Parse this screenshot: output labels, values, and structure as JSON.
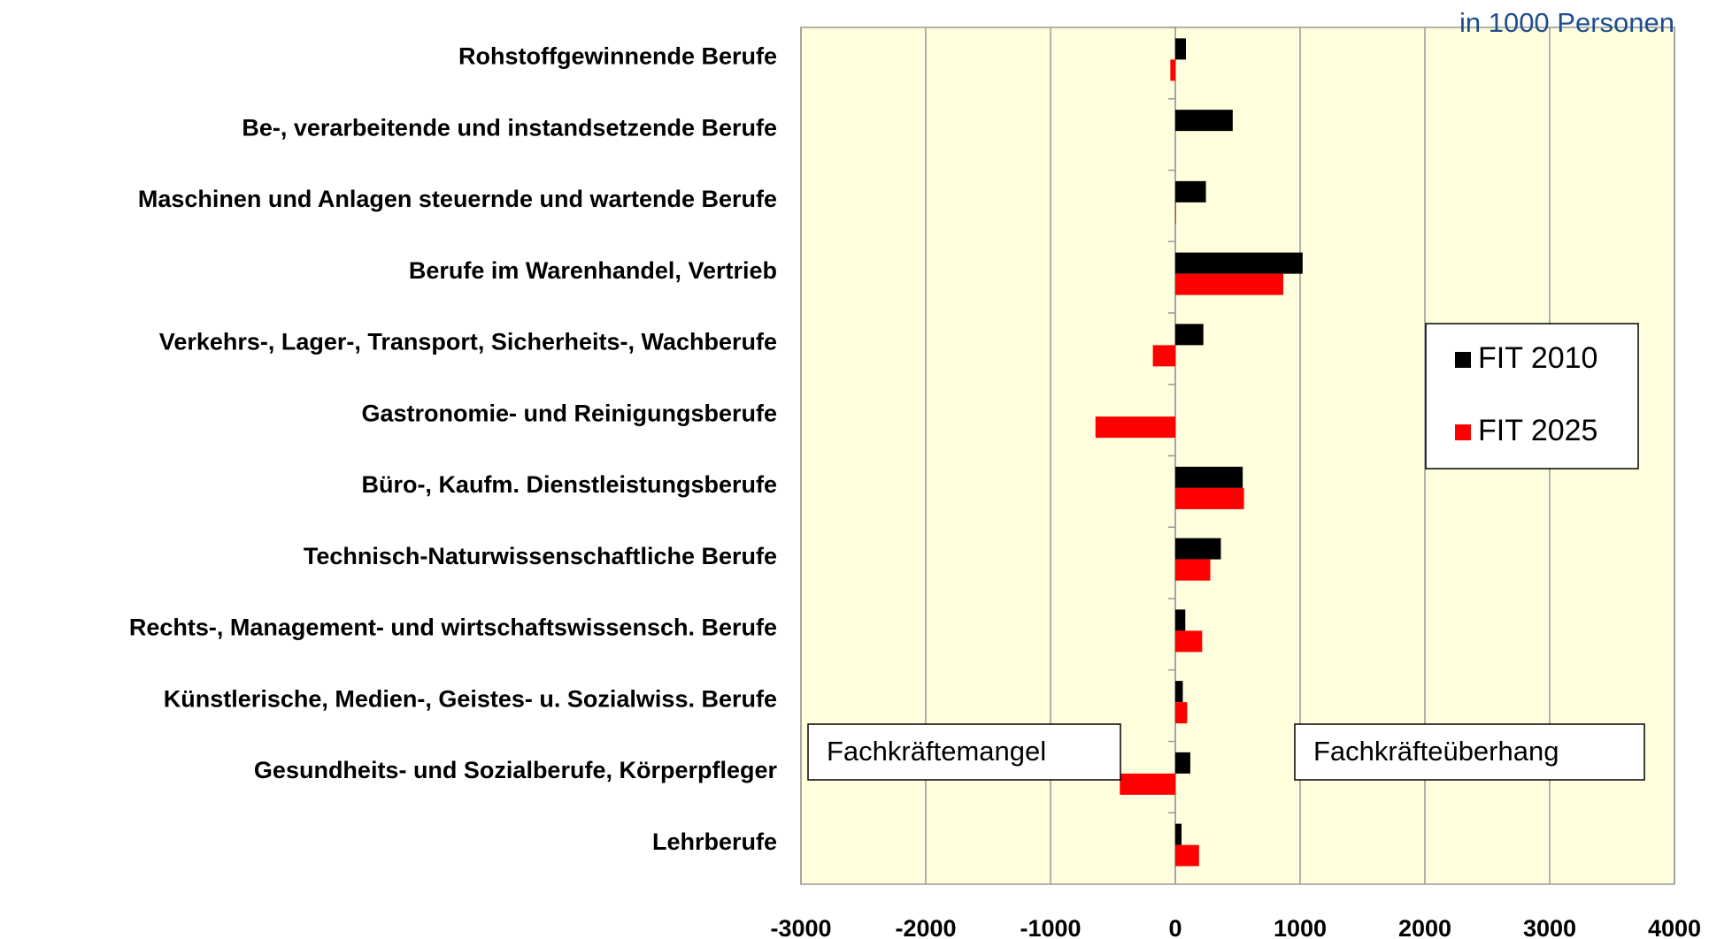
{
  "chart_data": {
    "type": "barh",
    "annotations": [
      "in 1000 Personen",
      "Fachkräftemangel",
      "Fachkräfteüberhang"
    ],
    "categories": [
      "Rohstoffgewinnende Berufe",
      "Be-, verarbeitende und instandsetzende Berufe",
      "Maschinen und Anlagen steuernde und wartende Berufe",
      "Berufe im Warenhandel, Vertrieb",
      "Verkehrs-, Lager-, Transport, Sicherheits-, Wachberufe",
      "Gastronomie- und Reinigungsberufe",
      "Büro-, Kaufm. Dienstleistungsberufe",
      "Technisch-Naturwissenschaftliche Berufe",
      "Rechts-, Management- und wirtschaftswissensch. Berufe",
      "Künstlerische, Medien-, Geistes- u. Sozialwiss. Berufe",
      "Gesundheits- und Sozialberufe, Körperpfleger",
      "Lehrberufe"
    ],
    "series": [
      {
        "name": "FIT 2010",
        "color": "#000000",
        "values": [
          85,
          460,
          245,
          1020,
          225,
          0,
          540,
          365,
          80,
          60,
          120,
          50
        ]
      },
      {
        "name": "FIT 2025",
        "color": "#ff0000",
        "values": [
          -40,
          0,
          5,
          865,
          -180,
          -640,
          550,
          280,
          215,
          95,
          -445,
          190
        ]
      }
    ],
    "xlim": [
      -3000,
      4000
    ],
    "xticks": [
      -3000,
      -2000,
      -1000,
      0,
      1000,
      2000,
      3000,
      4000
    ],
    "grid": true,
    "legend": "right"
  }
}
